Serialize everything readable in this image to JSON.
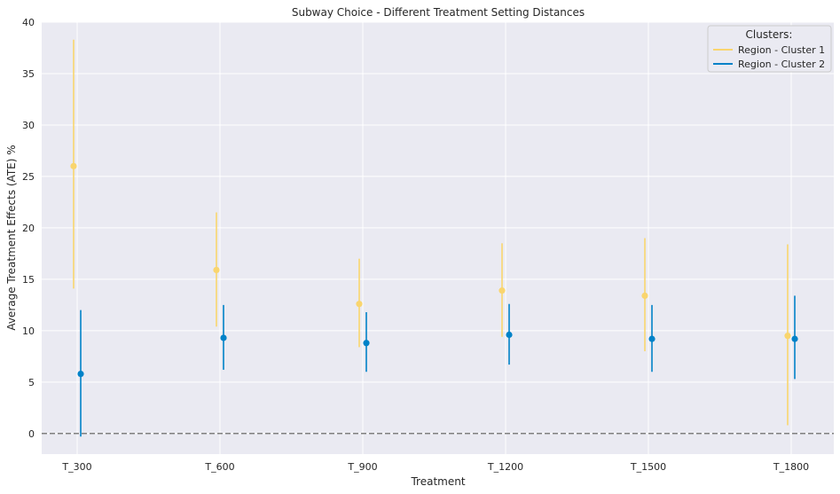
{
  "chart_data": {
    "type": "scatter",
    "title": "Subway Choice - Different Treatment Setting Distances",
    "xlabel": "Treatment",
    "ylabel": "Average Treatment Effects (ATE) %",
    "categories": [
      "T_300",
      "T_600",
      "T_900",
      "T_1200",
      "T_1500",
      "T_1800"
    ],
    "ylim": [
      -2,
      40
    ],
    "yticks": [
      0,
      5,
      10,
      15,
      20,
      25,
      30,
      35,
      40
    ],
    "grid": true,
    "reference_line_y": 0,
    "legend": {
      "title": "Clusters:",
      "placement": "top-right"
    },
    "series": [
      {
        "name": "Region - Cluster 1",
        "color": "#f9d56e",
        "points": [
          {
            "x": "T_300",
            "y": 26.0,
            "low": 14.1,
            "high": 38.3
          },
          {
            "x": "T_600",
            "y": 15.9,
            "low": 10.4,
            "high": 21.5
          },
          {
            "x": "T_900",
            "y": 12.6,
            "low": 8.4,
            "high": 17.0
          },
          {
            "x": "T_1200",
            "y": 13.9,
            "low": 9.4,
            "high": 18.5
          },
          {
            "x": "T_1500",
            "y": 13.4,
            "low": 8.0,
            "high": 19.0
          },
          {
            "x": "T_1800",
            "y": 9.5,
            "low": 0.8,
            "high": 18.4
          }
        ]
      },
      {
        "name": "Region - Cluster 2",
        "color": "#0082c8",
        "points": [
          {
            "x": "T_300",
            "y": 5.8,
            "low": -0.3,
            "high": 12.0
          },
          {
            "x": "T_600",
            "y": 9.3,
            "low": 6.2,
            "high": 12.5
          },
          {
            "x": "T_900",
            "y": 8.8,
            "low": 6.0,
            "high": 11.8
          },
          {
            "x": "T_1200",
            "y": 9.6,
            "low": 6.7,
            "high": 12.6
          },
          {
            "x": "T_1500",
            "y": 9.2,
            "low": 6.0,
            "high": 12.5
          },
          {
            "x": "T_1800",
            "y": 9.2,
            "low": 5.3,
            "high": 13.4
          }
        ]
      }
    ]
  }
}
